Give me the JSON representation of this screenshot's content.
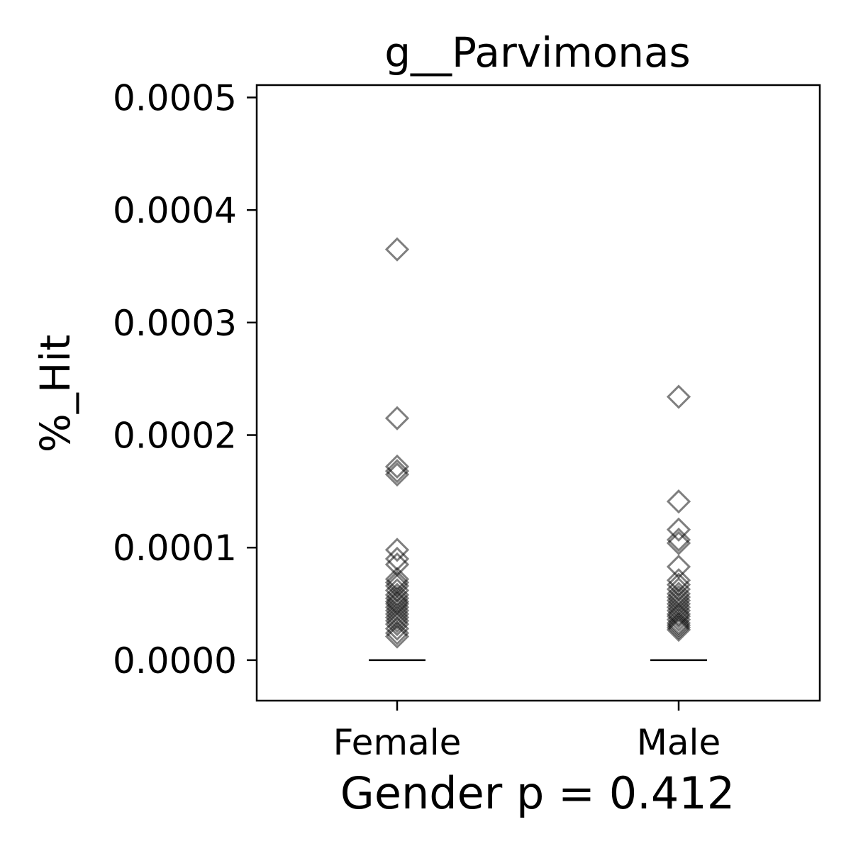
{
  "chart_data": {
    "type": "scatter",
    "title": "g__Parvimonas",
    "xlabel": "Gender p = 0.412",
    "ylabel": "%_Hit",
    "categories": [
      "Female",
      "Male"
    ],
    "y_ticks": [
      "0.0000",
      "0.0001",
      "0.0002",
      "0.0003",
      "0.0004",
      "0.0005"
    ],
    "ylim": [
      -3.6e-05,
      0.000511
    ],
    "marker": "diamond-open",
    "marker_color": "#000000",
    "marker_opacity": 0.5,
    "median_line_color": "#000000",
    "grid": false,
    "series": [
      {
        "category": "Female",
        "median": 0.0,
        "values": [
          0.000365,
          0.000215,
          0.000172,
          0.000168,
          0.000165,
          9.8e-05,
          9e-05,
          8.5e-05,
          7.2e-05,
          6.9e-05,
          6.6e-05,
          6.2e-05,
          5.8e-05,
          5.5e-05,
          5.2e-05,
          5e-05,
          4.7e-05,
          4.4e-05,
          4.1e-05,
          3.8e-05,
          3.5e-05,
          3.2e-05,
          2.8e-05,
          2.4e-05,
          2.1e-05
        ]
      },
      {
        "category": "Male",
        "median": 0.0,
        "values": [
          0.000234,
          0.000141,
          0.000116,
          0.000107,
          0.000104,
          8.3e-05,
          7.1e-05,
          6.7e-05,
          6.3e-05,
          5.9e-05,
          5.6e-05,
          5.3e-05,
          5e-05,
          4.7e-05,
          4.4e-05,
          4.1e-05,
          3.9e-05,
          3.6e-05,
          3.3e-05,
          3.1e-05,
          2.9e-05,
          2.7e-05
        ]
      }
    ]
  }
}
